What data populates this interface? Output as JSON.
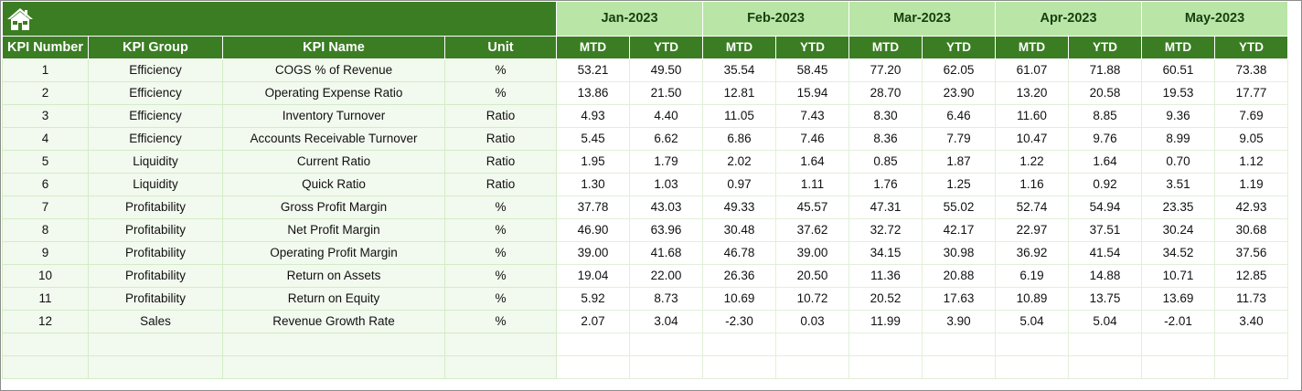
{
  "icons": {
    "home": "home-icon"
  },
  "colors": {
    "header_dark_green": "#3b7d23",
    "month_light_green": "#b9e5a7",
    "info_cell_tint": "#f2f9ee"
  },
  "columns": {
    "kpi_number": "KPI Number",
    "kpi_group": "KPI Group",
    "kpi_name": "KPI Name",
    "unit": "Unit",
    "mtd": "MTD",
    "ytd": "YTD"
  },
  "months": [
    "Jan-2023",
    "Feb-2023",
    "Mar-2023",
    "Apr-2023",
    "May-2023"
  ],
  "rows": [
    {
      "num": "1",
      "group": "Efficiency",
      "name": "COGS % of Revenue",
      "unit": "%",
      "vals": [
        "53.21",
        "49.50",
        "35.54",
        "58.45",
        "77.20",
        "62.05",
        "61.07",
        "71.88",
        "60.51",
        "73.38"
      ]
    },
    {
      "num": "2",
      "group": "Efficiency",
      "name": "Operating Expense Ratio",
      "unit": "%",
      "vals": [
        "13.86",
        "21.50",
        "12.81",
        "15.94",
        "28.70",
        "23.90",
        "13.20",
        "20.58",
        "19.53",
        "17.77"
      ]
    },
    {
      "num": "3",
      "group": "Efficiency",
      "name": "Inventory Turnover",
      "unit": "Ratio",
      "vals": [
        "4.93",
        "4.40",
        "11.05",
        "7.43",
        "8.30",
        "6.46",
        "11.60",
        "8.85",
        "9.36",
        "7.69"
      ]
    },
    {
      "num": "4",
      "group": "Efficiency",
      "name": "Accounts Receivable Turnover",
      "unit": "Ratio",
      "vals": [
        "5.45",
        "6.62",
        "6.86",
        "7.46",
        "8.36",
        "7.79",
        "10.47",
        "9.76",
        "8.99",
        "9.05"
      ]
    },
    {
      "num": "5",
      "group": "Liquidity",
      "name": "Current Ratio",
      "unit": "Ratio",
      "vals": [
        "1.95",
        "1.79",
        "2.02",
        "1.64",
        "0.85",
        "1.87",
        "1.22",
        "1.64",
        "0.70",
        "1.12"
      ]
    },
    {
      "num": "6",
      "group": "Liquidity",
      "name": "Quick Ratio",
      "unit": "Ratio",
      "vals": [
        "1.30",
        "1.03",
        "0.97",
        "1.11",
        "1.76",
        "1.25",
        "1.16",
        "0.92",
        "3.51",
        "1.19"
      ]
    },
    {
      "num": "7",
      "group": "Profitability",
      "name": "Gross Profit Margin",
      "unit": "%",
      "vals": [
        "37.78",
        "43.03",
        "49.33",
        "45.57",
        "47.31",
        "55.02",
        "52.74",
        "54.94",
        "23.35",
        "42.93"
      ]
    },
    {
      "num": "8",
      "group": "Profitability",
      "name": "Net Profit Margin",
      "unit": "%",
      "vals": [
        "46.90",
        "63.96",
        "30.48",
        "37.62",
        "32.72",
        "42.17",
        "22.97",
        "37.51",
        "30.24",
        "30.68"
      ]
    },
    {
      "num": "9",
      "group": "Profitability",
      "name": "Operating Profit Margin",
      "unit": "%",
      "vals": [
        "39.00",
        "41.68",
        "46.78",
        "39.00",
        "34.15",
        "30.98",
        "36.92",
        "41.54",
        "34.52",
        "37.56"
      ]
    },
    {
      "num": "10",
      "group": "Profitability",
      "name": "Return on Assets",
      "unit": "%",
      "vals": [
        "19.04",
        "22.00",
        "26.36",
        "20.50",
        "11.36",
        "20.88",
        "6.19",
        "14.88",
        "10.71",
        "12.85"
      ]
    },
    {
      "num": "11",
      "group": "Profitability",
      "name": "Return on Equity",
      "unit": "%",
      "vals": [
        "5.92",
        "8.73",
        "10.69",
        "10.72",
        "20.52",
        "17.63",
        "10.89",
        "13.75",
        "13.69",
        "11.73"
      ]
    },
    {
      "num": "12",
      "group": "Sales",
      "name": "Revenue Growth Rate",
      "unit": "%",
      "vals": [
        "2.07",
        "3.04",
        "-2.30",
        "0.03",
        "11.99",
        "3.90",
        "5.04",
        "5.04",
        "-2.01",
        "3.40"
      ]
    },
    {
      "num": "",
      "group": "",
      "name": "",
      "unit": "",
      "vals": [
        "",
        "",
        "",
        "",
        "",
        "",
        "",
        "",
        "",
        ""
      ]
    },
    {
      "num": "",
      "group": "",
      "name": "",
      "unit": "",
      "vals": [
        "",
        "",
        "",
        "",
        "",
        "",
        "",
        "",
        "",
        ""
      ]
    }
  ]
}
